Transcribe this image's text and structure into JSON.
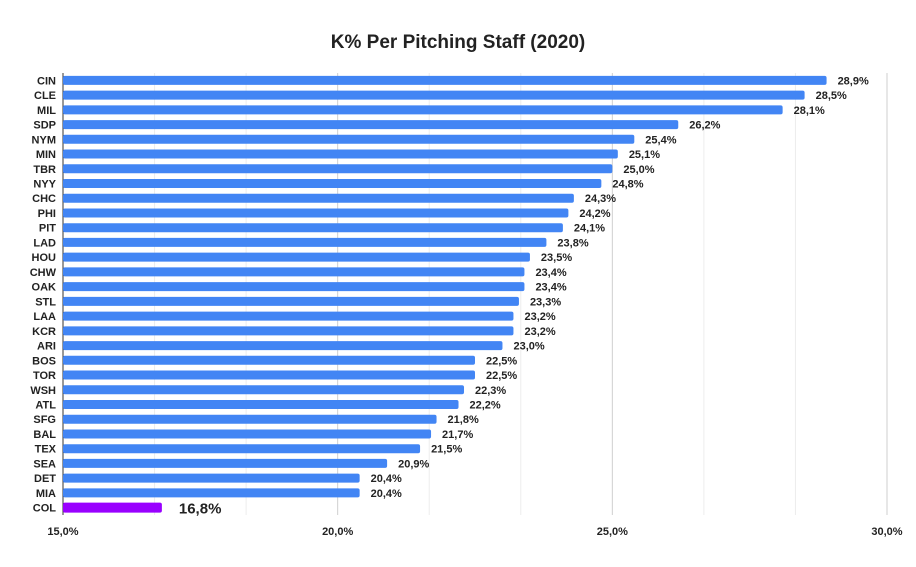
{
  "chart_data": {
    "type": "bar",
    "orientation": "horizontal",
    "title": "K% Per Pitching Staff (2020)",
    "categories": [
      "CIN",
      "CLE",
      "MIL",
      "SDP",
      "NYM",
      "MIN",
      "TBR",
      "NYY",
      "CHC",
      "PHI",
      "PIT",
      "LAD",
      "HOU",
      "CHW",
      "OAK",
      "STL",
      "LAA",
      "KCR",
      "ARI",
      "BOS",
      "TOR",
      "WSH",
      "ATL",
      "SFG",
      "BAL",
      "TEX",
      "SEA",
      "DET",
      "MIA",
      "COL"
    ],
    "values": [
      28.9,
      28.5,
      28.1,
      26.2,
      25.4,
      25.1,
      25.0,
      24.8,
      24.3,
      24.2,
      24.1,
      23.8,
      23.5,
      23.4,
      23.4,
      23.3,
      23.2,
      23.2,
      23.0,
      22.5,
      22.5,
      22.3,
      22.2,
      21.8,
      21.7,
      21.5,
      20.9,
      20.4,
      20.4,
      16.8
    ],
    "value_labels": [
      "28,9%",
      "28,5%",
      "28,1%",
      "26,2%",
      "25,4%",
      "25,1%",
      "25,0%",
      "24,8%",
      "24,3%",
      "24,2%",
      "24,1%",
      "23,8%",
      "23,5%",
      "23,4%",
      "23,4%",
      "23,3%",
      "23,2%",
      "23,2%",
      "23,0%",
      "22,5%",
      "22,5%",
      "22,3%",
      "22,2%",
      "21,8%",
      "21,7%",
      "21,5%",
      "20,9%",
      "20,4%",
      "20,4%",
      "16,8%"
    ],
    "highlight": "COL",
    "xlim": [
      15,
      30
    ],
    "xticks": [
      15,
      20,
      25,
      30
    ],
    "xtick_labels": [
      "15,0%",
      "20,0%",
      "25,0%",
      "30,0%"
    ],
    "xlabel": "",
    "ylabel": "",
    "grid": true,
    "legend": "none",
    "colors": {
      "bar": "#4285f4",
      "highlight": "#9900ff"
    }
  }
}
